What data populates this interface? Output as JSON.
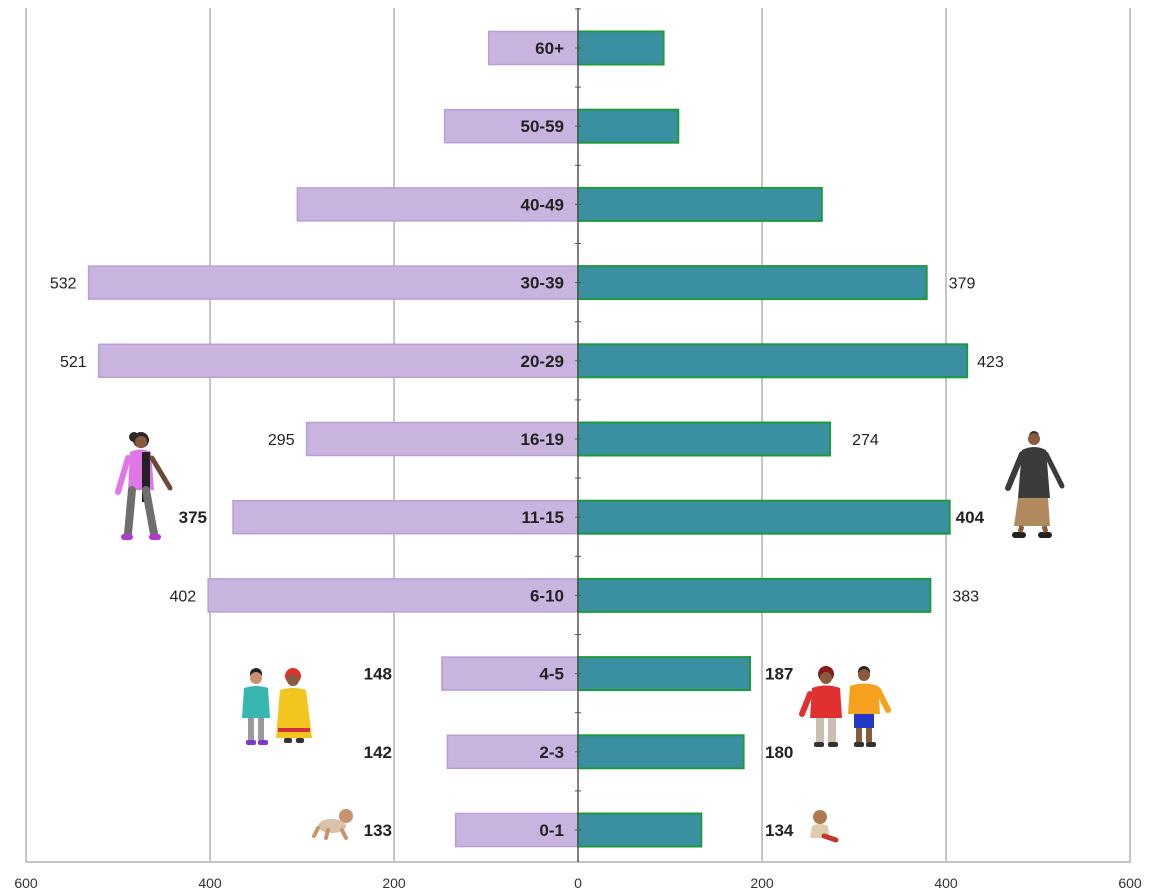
{
  "chart_data": {
    "type": "bar",
    "orientation": "horizontal",
    "layout": "diverging-population-pyramid",
    "categories": [
      "60+",
      "50-59",
      "40-49",
      "30-39",
      "20-29",
      "16-19",
      "11-15",
      "6-10",
      "4-5",
      "2-3",
      "0-1"
    ],
    "series": [
      {
        "color": "#c8b4de",
        "side": "left",
        "values": [
          97,
          145,
          305,
          532,
          521,
          295,
          375,
          402,
          148,
          142,
          133
        ],
        "labels": [
          "",
          "",
          "",
          "532",
          "521",
          "295",
          "375",
          "402",
          "148",
          "142",
          "133"
        ]
      },
      {
        "color": "#3a8fa0",
        "side": "right",
        "values": [
          93,
          109,
          265,
          379,
          423,
          274,
          404,
          383,
          187,
          180,
          134
        ],
        "labels": [
          "",
          "",
          "",
          "379",
          "423",
          "274",
          "404",
          "383",
          "187",
          "180",
          "134"
        ]
      }
    ],
    "bold_labels_for": [
      "11-15",
      "4-5",
      "2-3",
      "0-1"
    ],
    "xlim": [
      -600,
      600
    ],
    "xticks": [
      "600",
      "400",
      "200",
      "0",
      "200",
      "400",
      "600"
    ],
    "grid": "vertical",
    "legend": "none",
    "title": "",
    "xlabel": "",
    "ylabel": ""
  },
  "style": {
    "left_bar_stroke": "#b89fd6",
    "right_bar_stroke": "#1e9a3e",
    "grid_color": "#c4c4c4",
    "axis_color": "#555555"
  },
  "illustrations": [
    "woman-walking-icon",
    "man-walking-icon",
    "girls-pair-icon",
    "boys-pair-icon",
    "crawling-baby-icon",
    "sitting-baby-icon"
  ]
}
